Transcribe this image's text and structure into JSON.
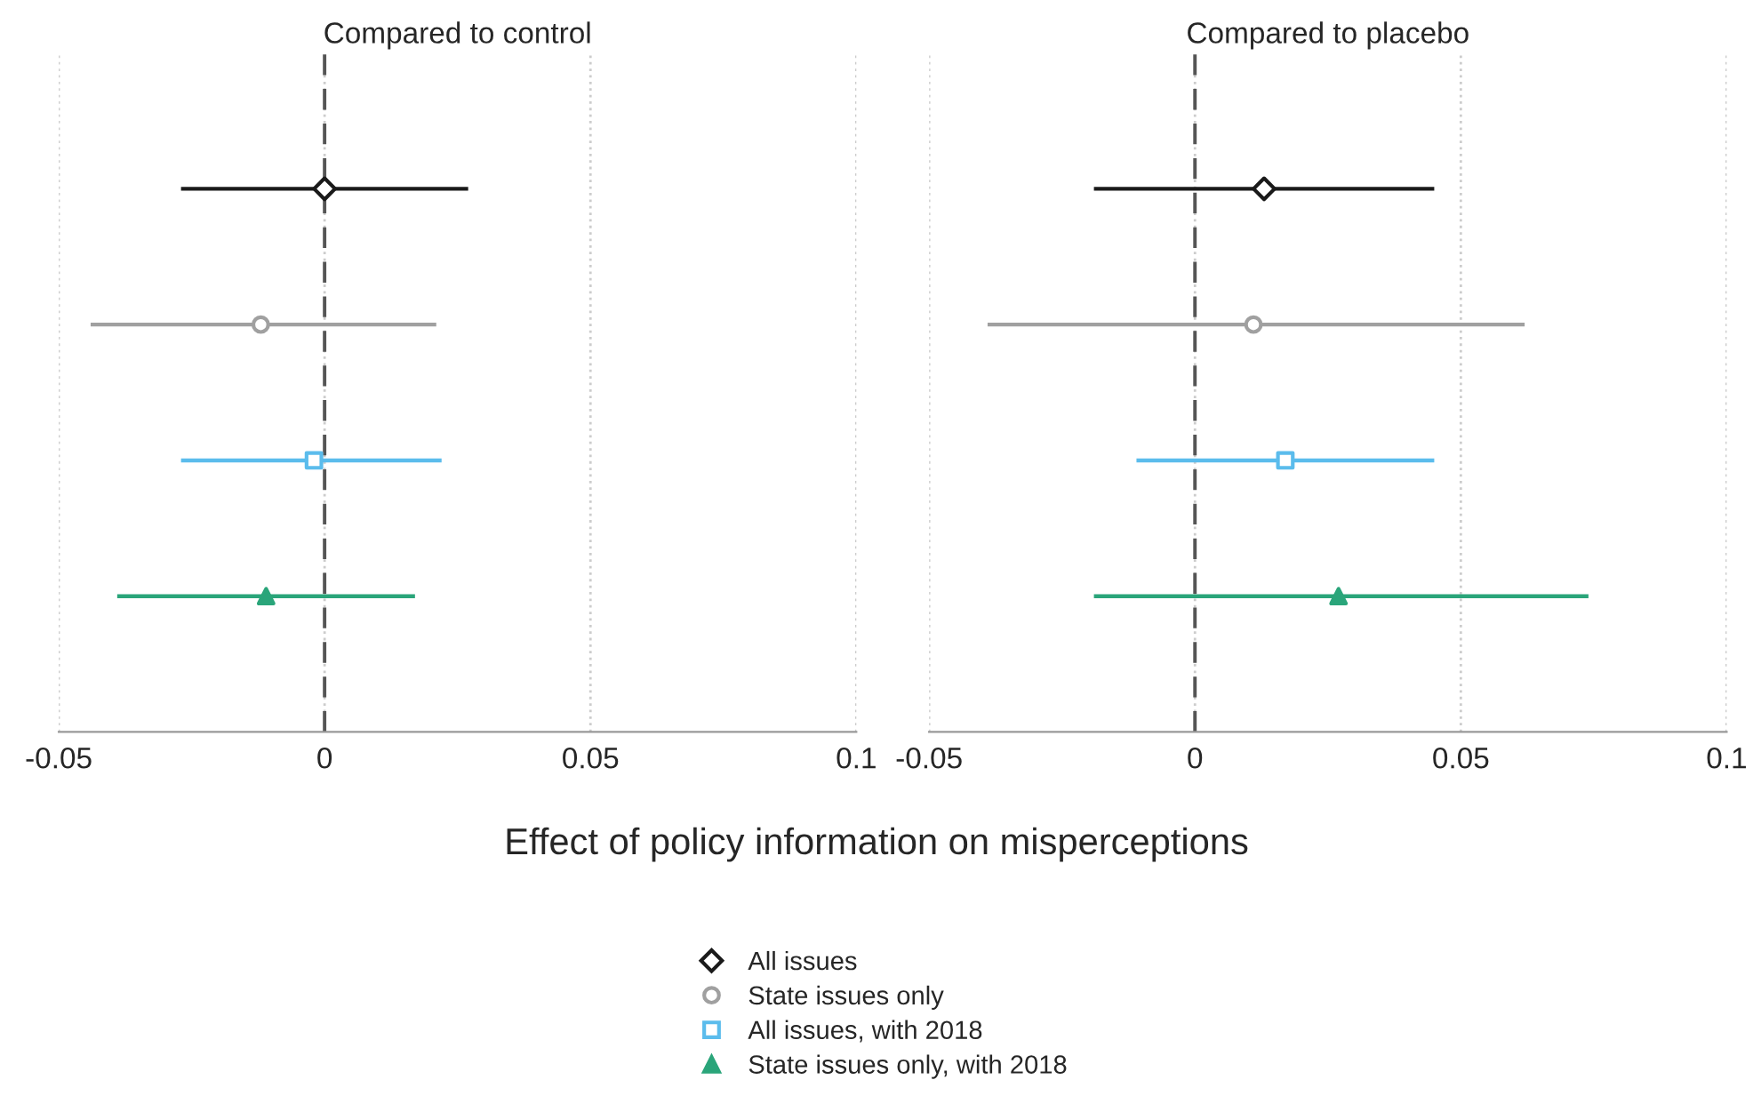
{
  "chart_data": [
    {
      "type": "scatter",
      "orientation": "horizontal",
      "title": "Compared to control",
      "xlabel": "Effect of policy information on misperceptions",
      "categories": [
        null,
        null,
        null,
        null
      ],
      "xlim": [
        -0.05,
        0.1
      ],
      "xticks": [
        -0.05,
        0,
        0.05,
        0.1
      ],
      "grid": "x",
      "tick_labels": "x",
      "legend": "bottom",
      "ref_lines": [
        {
          "axis": "x",
          "value": 0,
          "line_style": "dashed",
          "color": "#555555"
        }
      ],
      "series": [
        {
          "name": "All issues",
          "color": "#1a1a1a",
          "marker": "diamond",
          "values": [
            0,
            null,
            null,
            null
          ],
          "errors": [
            [
              -0.027,
              0.027
            ],
            null,
            null,
            null
          ]
        },
        {
          "name": "State issues only",
          "color": "#a0a0a0",
          "marker": "circle",
          "values": [
            null,
            -0.012,
            null,
            null
          ],
          "errors": [
            null,
            [
              -0.044,
              0.021
            ],
            null,
            null
          ]
        },
        {
          "name": "All issues, with 2018",
          "color": "#5bbcec",
          "marker": "square",
          "values": [
            null,
            null,
            -0.002,
            null
          ],
          "errors": [
            null,
            null,
            [
              -0.027,
              0.022
            ],
            null
          ]
        },
        {
          "name": "State issues only, with 2018",
          "color": "#2aa57a",
          "marker": "triangle",
          "values": [
            null,
            null,
            null,
            -0.011
          ],
          "errors": [
            null,
            null,
            null,
            [
              -0.039,
              0.017
            ]
          ]
        }
      ]
    },
    {
      "type": "scatter",
      "orientation": "horizontal",
      "title": "Compared to placebo",
      "categories": [
        null,
        null,
        null,
        null
      ],
      "xlim": [
        -0.05,
        0.1
      ],
      "xticks": [
        -0.05,
        0,
        0.05,
        0.1
      ],
      "grid": "x",
      "tick_labels": "x",
      "ref_lines": [
        {
          "axis": "x",
          "value": 0,
          "line_style": "dashed",
          "color": "#555555"
        }
      ],
      "series": [
        {
          "color": "#1a1a1a",
          "marker": "diamond",
          "values": [
            0.013,
            null,
            null,
            null
          ],
          "errors": [
            [
              -0.019,
              0.045
            ],
            null,
            null,
            null
          ]
        },
        {
          "color": "#a0a0a0",
          "marker": "circle",
          "values": [
            null,
            0.011,
            null,
            null
          ],
          "errors": [
            null,
            [
              -0.039,
              0.062
            ],
            null,
            null
          ]
        },
        {
          "color": "#5bbcec",
          "marker": "square",
          "values": [
            null,
            null,
            0.017,
            null
          ],
          "errors": [
            null,
            null,
            [
              -0.011,
              0.045
            ],
            null
          ]
        },
        {
          "color": "#2aa57a",
          "marker": "triangle",
          "values": [
            null,
            null,
            null,
            0.027
          ],
          "errors": [
            null,
            null,
            null,
            [
              -0.019,
              0.074
            ]
          ]
        }
      ]
    }
  ]
}
